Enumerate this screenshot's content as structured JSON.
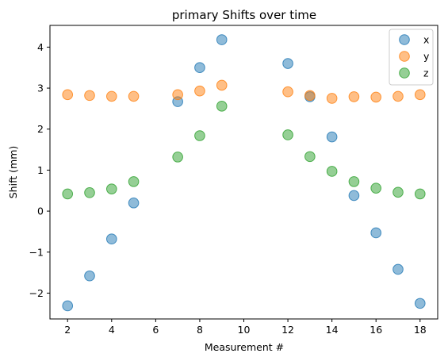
{
  "chart_data": {
    "type": "scatter",
    "title": "primary Shifts over time",
    "xlabel": "Measurement #",
    "ylabel": "Shift (mm)",
    "xlim": [
      1.2,
      18.8
    ],
    "ylim": [
      -2.63,
      4.53
    ],
    "xticks": [
      2,
      4,
      6,
      8,
      10,
      12,
      14,
      16,
      18
    ],
    "yticks": [
      -2,
      -1,
      0,
      1,
      2,
      3,
      4
    ],
    "ytick_labels": [
      "−2",
      "−1",
      "0",
      "1",
      "2",
      "3",
      "4"
    ],
    "legend_position": "top-right",
    "x": [
      2,
      3,
      4,
      5,
      7,
      8,
      9,
      12,
      13,
      14,
      15,
      16,
      17,
      18
    ],
    "series": [
      {
        "name": "x",
        "color": "#1f77b4",
        "values": [
          -2.31,
          -1.58,
          -0.68,
          0.2,
          2.67,
          3.5,
          4.18,
          3.6,
          2.79,
          1.81,
          0.38,
          -0.53,
          -1.42,
          -2.25
        ]
      },
      {
        "name": "y",
        "color": "#ff7f0e",
        "values": [
          2.84,
          2.82,
          2.8,
          2.8,
          2.84,
          2.93,
          3.07,
          2.91,
          2.82,
          2.75,
          2.79,
          2.78,
          2.8,
          2.84
        ]
      },
      {
        "name": "z",
        "color": "#2ca02c",
        "values": [
          0.42,
          0.45,
          0.54,
          0.72,
          1.32,
          1.84,
          2.56,
          1.86,
          1.33,
          0.97,
          0.72,
          0.56,
          0.46,
          0.42
        ]
      }
    ]
  }
}
